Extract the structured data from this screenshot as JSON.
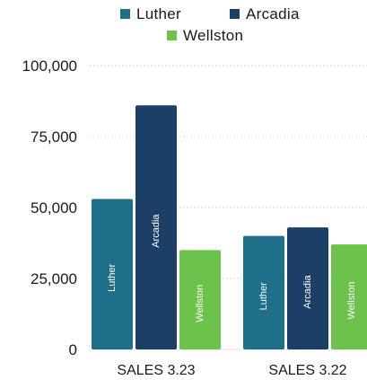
{
  "chart_data": {
    "type": "bar",
    "categories": [
      "SALES 3.23",
      "SALES 3.22"
    ],
    "series": [
      {
        "name": "Luther",
        "color": "#1f6f8b",
        "values": [
          53000,
          40000
        ]
      },
      {
        "name": "Arcadia",
        "color": "#1b3f66",
        "values": [
          86000,
          43000
        ]
      },
      {
        "name": "Wellston",
        "color": "#6cc24a",
        "values": [
          35000,
          37000
        ]
      }
    ],
    "ylim": [
      0,
      100000
    ],
    "yticks": [
      0,
      25000,
      50000,
      75000,
      100000
    ],
    "ytick_labels": [
      "0",
      "25,000",
      "50,000",
      "75,000",
      "100,000"
    ],
    "bar_labels": [
      "Luther",
      "Arcadia",
      "Wellston"
    ],
    "legend_position": "top-center",
    "grid": "horizontal dotted"
  }
}
